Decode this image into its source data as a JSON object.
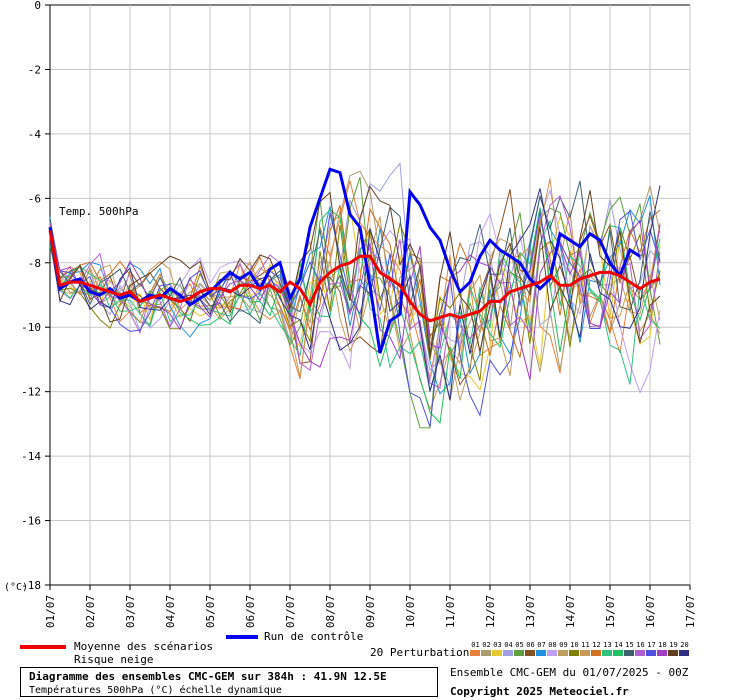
{
  "chart_data": {
    "type": "line",
    "title": "Diagramme des ensembles CMC-GEM sur 384h : 41.9N 12.5E",
    "subtitle": "Températures 500hPa (°C) échelle dynamique",
    "series_label": "Temp. 500hPa",
    "y_unit_label": "(°C)",
    "ylim": [
      -18,
      0
    ],
    "y_ticks": [
      0,
      -2,
      -4,
      -6,
      -8,
      -10,
      -12,
      -14,
      -16,
      -18
    ],
    "x_ticks": [
      "01/07",
      "02/07",
      "03/07",
      "04/07",
      "05/07",
      "06/07",
      "07/07",
      "08/07",
      "09/07",
      "10/07",
      "11/07",
      "12/07",
      "13/07",
      "14/07",
      "15/07",
      "16/07",
      "17/07"
    ],
    "step_hours": 6,
    "grid": true,
    "series": [
      {
        "name": "Moyenne des scénarios",
        "color": "#ee0000",
        "width": 3,
        "values": [
          -7.0,
          -8.7,
          -8.6,
          -8.6,
          -8.7,
          -8.8,
          -8.9,
          -9.0,
          -8.9,
          -9.2,
          -9.1,
          -9.0,
          -9.1,
          -9.2,
          -9.1,
          -8.9,
          -8.8,
          -8.8,
          -8.9,
          -8.7,
          -8.7,
          -8.8,
          -8.7,
          -8.9,
          -8.6,
          -8.8,
          -9.3,
          -8.6,
          -8.3,
          -8.1,
          -8.0,
          -7.8,
          -7.8,
          -8.3,
          -8.5,
          -8.7,
          -9.2,
          -9.6,
          -9.8,
          -9.7,
          -9.6,
          -9.7,
          -9.6,
          -9.5,
          -9.2,
          -9.2,
          -8.9,
          -8.8,
          -8.7,
          -8.6,
          -8.4,
          -8.7,
          -8.7,
          -8.5,
          -8.4,
          -8.3,
          -8.3,
          -8.4,
          -8.6,
          -8.8,
          -8.6,
          -8.5
        ]
      },
      {
        "name": "Run de contrôle",
        "color": "#0000ee",
        "width": 3,
        "values": [
          -6.9,
          -8.8,
          -8.6,
          -8.5,
          -8.9,
          -9.0,
          -8.8,
          -9.1,
          -9.0,
          -9.2,
          -9.0,
          -9.1,
          -8.8,
          -9.0,
          -9.3,
          -9.1,
          -8.9,
          -8.6,
          -8.3,
          -8.5,
          -8.3,
          -8.8,
          -8.2,
          -8.0,
          -9.1,
          -8.5,
          -6.9,
          -6.0,
          -5.1,
          -5.2,
          -6.5,
          -6.9,
          -8.7,
          -10.8,
          -9.8,
          -9.6,
          -5.8,
          -6.2,
          -6.9,
          -7.3,
          -8.2,
          -8.9,
          -8.6,
          -7.8,
          -7.3,
          -7.6,
          -7.8,
          -8.0,
          -8.5,
          -8.8,
          -8.5,
          -7.1,
          -7.3,
          -7.5,
          -7.1,
          -7.3,
          -8.0,
          -8.4,
          -7.6,
          -7.8
        ]
      }
    ],
    "legend": {
      "mean": "Moyenne des scénarios",
      "snow_risk": "Risque neige",
      "control": "Run de contrôle",
      "perturbations": "20 Perturbations",
      "perturbation_ids": [
        "01",
        "02",
        "03",
        "04",
        "05",
        "06",
        "07",
        "08",
        "09",
        "10",
        "11",
        "12",
        "13",
        "14",
        "15",
        "16",
        "17",
        "18",
        "19",
        "20"
      ],
      "perturbation_colors": [
        "#e8803c",
        "#ab9c6e",
        "#e8c830",
        "#a0a0e0",
        "#60a040",
        "#885020",
        "#2090e0",
        "#c0a0f0",
        "#c0a060",
        "#808000",
        "#c89858",
        "#d07020",
        "#30c080",
        "#20c060",
        "#406070",
        "#b060d0",
        "#5050e0",
        "#a040c0",
        "#604020",
        "#303080"
      ]
    },
    "footer": {
      "ensemble": "Ensemble CMC-GEM du 01/07/2025 - 00Z",
      "copyright": "Copyright 2025 Meteociel.fr"
    }
  }
}
